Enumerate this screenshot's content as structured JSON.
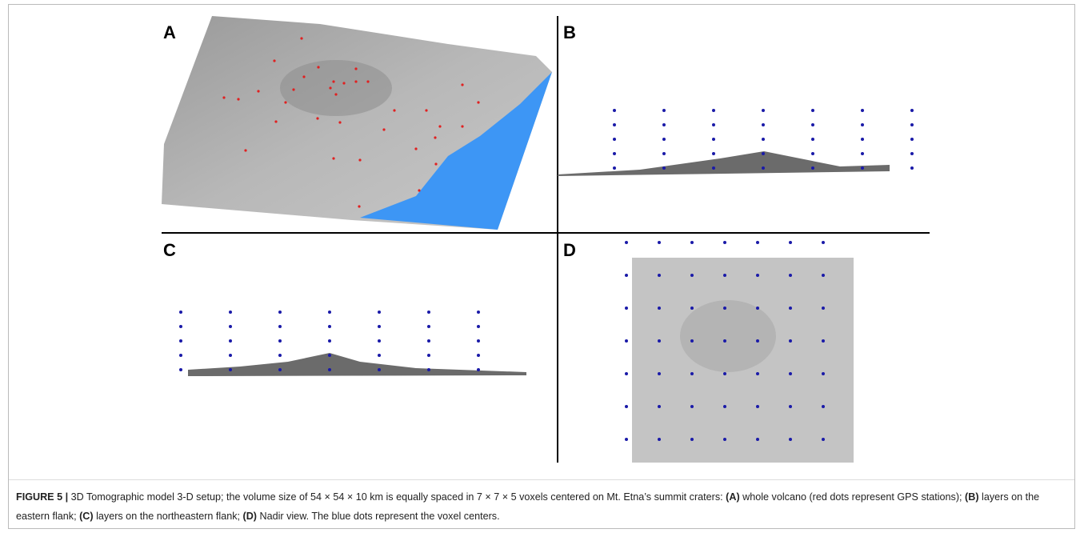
{
  "figure": {
    "panels": {
      "a": "A",
      "b": "B",
      "c": "C",
      "d": "D"
    },
    "caption": [
      "FIGURE 5 |",
      " 3D Tomographic model 3-D setup; the volume size of 54 × 54 × 10 km is equally spaced in 7 × 7 × 5 voxels centered on Mt. Etna’s summit craters: ",
      "(A)",
      " whole volcano (red dots represent GPS stations); ",
      "(B)",
      " layers on the eastern flank; ",
      "(C)",
      " layers on the northeastern flank; ",
      "(D)",
      " Nadir view. The blue dots represent the voxel centers."
    ]
  }
}
